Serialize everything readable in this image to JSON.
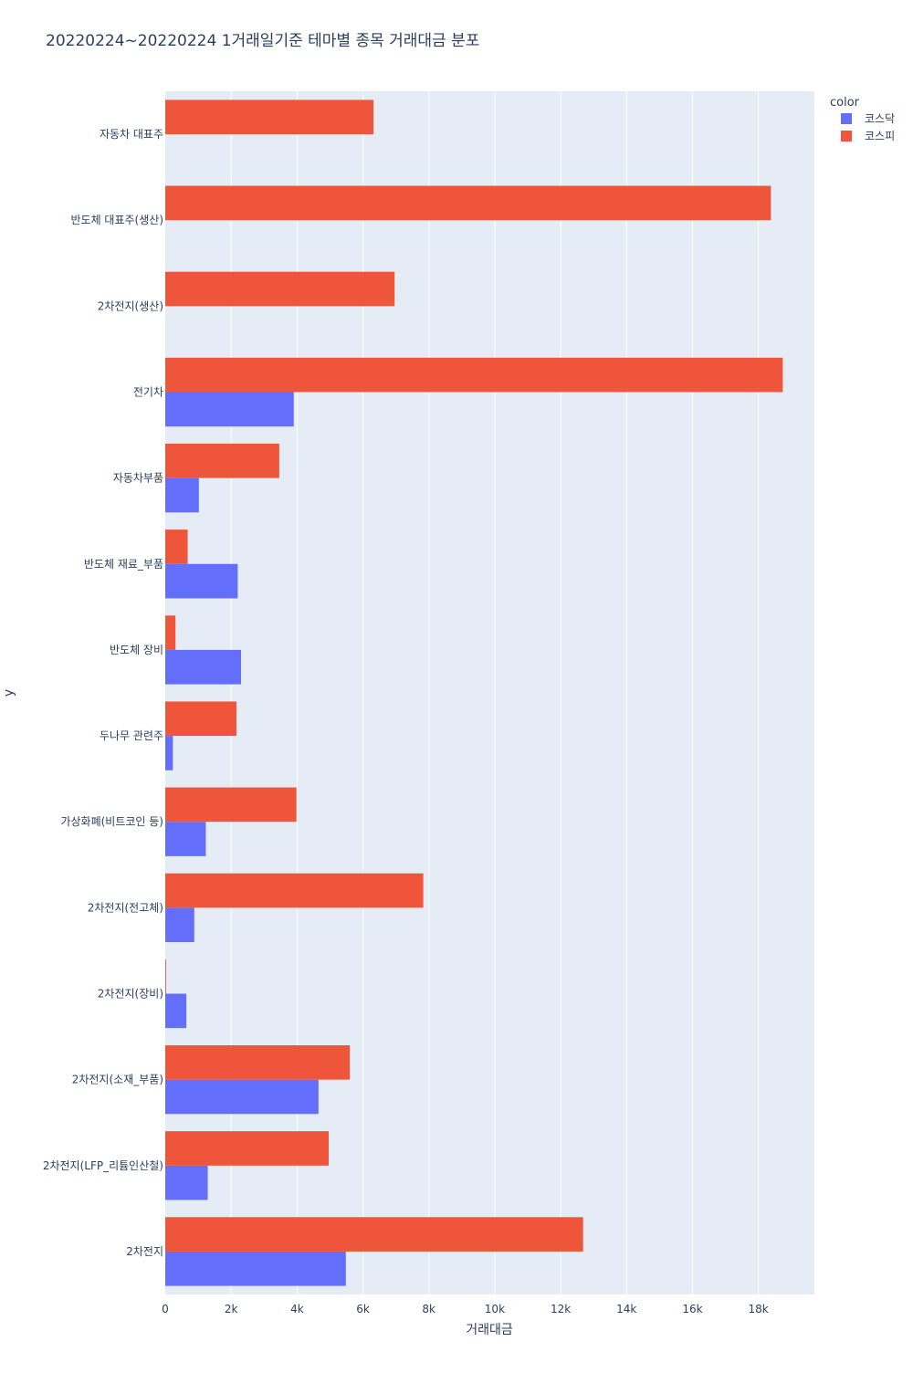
{
  "chart_data": {
    "type": "bar",
    "orientation": "horizontal",
    "title": "20220224~20220224 1거래일기준 테마별 종목 거래대금 분포",
    "xlabel": "거래대금",
    "ylabel": "y",
    "xlim": [
      0,
      19700
    ],
    "xticks": [
      0,
      2000,
      4000,
      6000,
      8000,
      10000,
      12000,
      14000,
      16000,
      18000
    ],
    "xtick_labels": [
      "0",
      "2k",
      "4k",
      "6k",
      "8k",
      "10k",
      "12k",
      "14k",
      "16k",
      "18k"
    ],
    "grid": true,
    "legend": {
      "title": "color",
      "position": "top-right"
    },
    "categories": [
      "자동차 대표주",
      "반도체 대표주(생산)",
      "2차전지(생산)",
      "전기차",
      "자동차부품",
      "반도체 재료_부품",
      "반도체 장비",
      "두나무 관련주",
      "가상화폐(비트코인 등)",
      "2차전지(전고체)",
      "2차전지(장비)",
      "2차전지(소재_부품)",
      "2차전지(LFP_리튬인산철)",
      "2차전지"
    ],
    "series": [
      {
        "name": "코스닥",
        "color": "#636efa",
        "values": [
          0,
          0,
          0,
          3900,
          1020,
          2200,
          2300,
          230,
          1230,
          880,
          640,
          4650,
          1290,
          5480
        ]
      },
      {
        "name": "코스피",
        "color": "#ef553b",
        "values": [
          6320,
          18380,
          6960,
          18740,
          3460,
          680,
          310,
          2160,
          3980,
          7830,
          25,
          5600,
          4960,
          12680
        ]
      }
    ]
  }
}
